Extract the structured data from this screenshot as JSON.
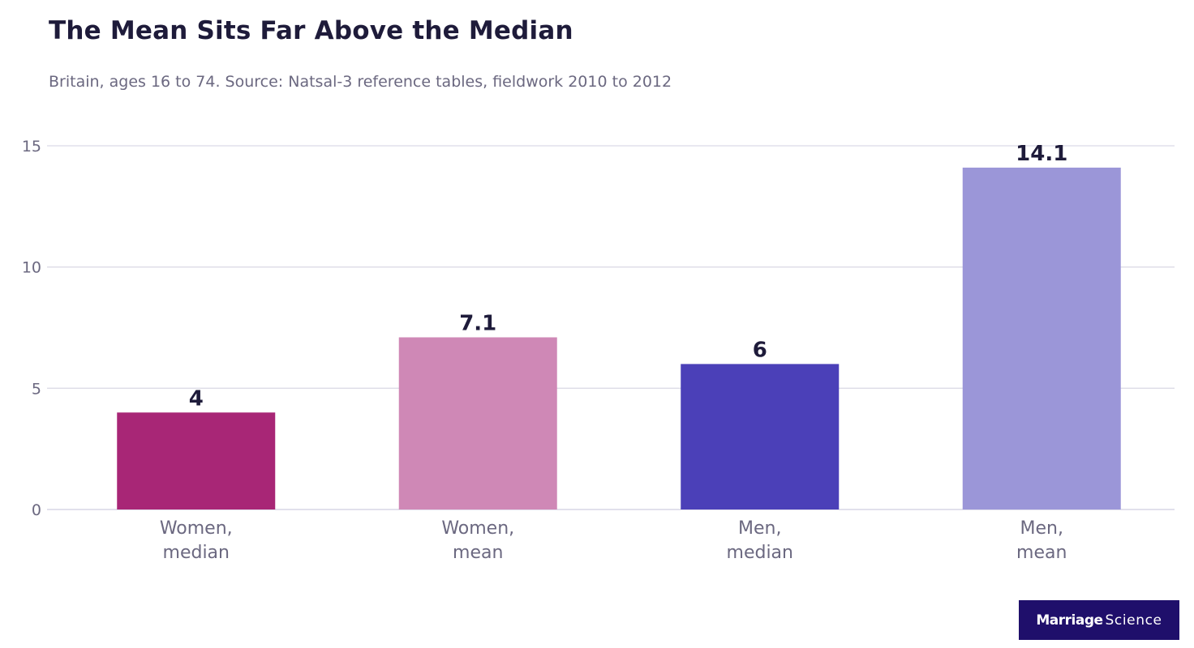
{
  "title": "The Mean Sits Far Above the Median",
  "subtitle": "Britain, ages 16 to 74. Source: Natsal-3 reference tables, fieldwork 2010 to 2012",
  "brand": {
    "part1": "Marriage",
    "part2": "Science"
  },
  "chart_data": {
    "type": "bar",
    "categories": [
      [
        "Women,",
        "median"
      ],
      [
        "Women,",
        "mean"
      ],
      [
        "Men,",
        "median"
      ],
      [
        "Men,",
        "mean"
      ]
    ],
    "values": [
      4,
      7.1,
      6,
      14.1
    ],
    "value_labels": [
      "4",
      "7.1",
      "6",
      "14.1"
    ],
    "colors": [
      "#a82676",
      "#cf88b6",
      "#4b40b8",
      "#9b96d8"
    ],
    "ylim": [
      0,
      15
    ],
    "yticks": [
      0,
      5,
      10,
      15
    ],
    "grid": true,
    "xlabel": "",
    "ylabel": ""
  }
}
